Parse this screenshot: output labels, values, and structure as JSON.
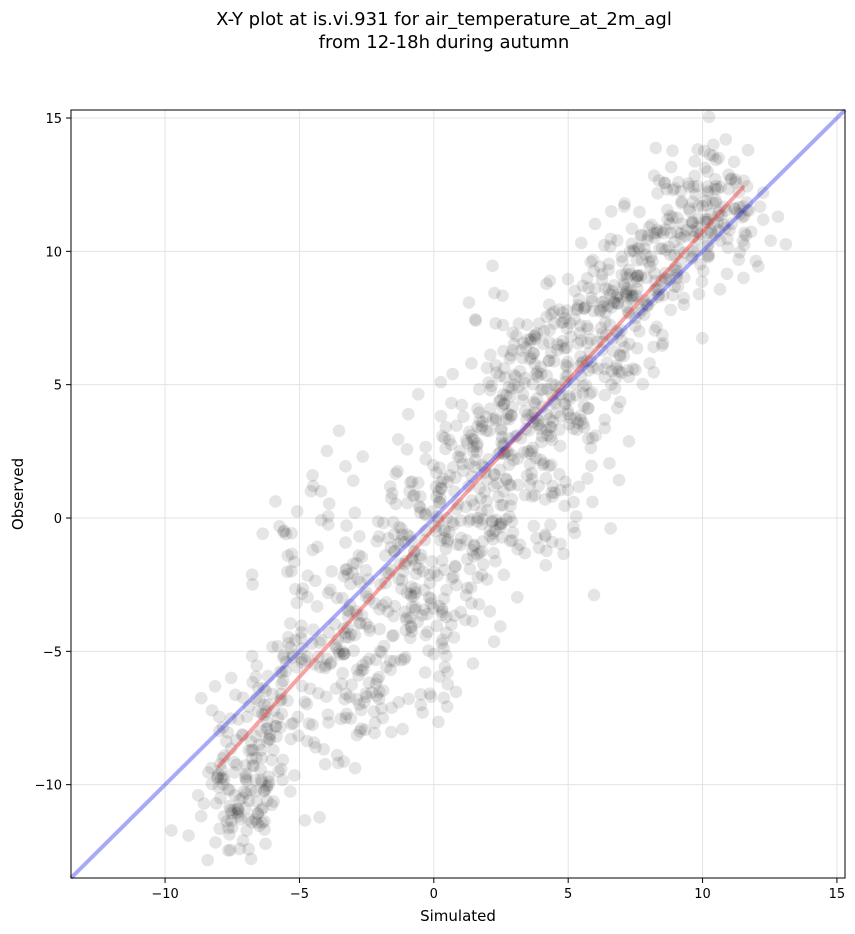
{
  "chart_data": {
    "type": "scatter",
    "title_lines": [
      "X-Y plot at is.vi.931 for air_temperature_at_2m_agl",
      "from 12-18h during autumn"
    ],
    "xlabel": "Simulated",
    "ylabel": "Observed",
    "xlim": [
      -13.5,
      15.3
    ],
    "ylim": [
      -13.5,
      15.3
    ],
    "x_ticks": [
      -10,
      -5,
      0,
      5,
      10,
      15
    ],
    "y_ticks": [
      -10,
      -5,
      0,
      5,
      10,
      15
    ],
    "x_tick_labels": [
      "−10",
      "−5",
      "0",
      "5",
      "10",
      "15"
    ],
    "y_tick_labels": [
      "−10",
      "−5",
      "0",
      "5",
      "10",
      "15"
    ],
    "grid": true,
    "point_color": "#000000",
    "point_opacity": 0.1,
    "point_count": 1200,
    "fit_line": {
      "color": "#ee3333",
      "from": [
        -8.0,
        -9.3
      ],
      "to": [
        11.5,
        12.4
      ]
    },
    "identity_line": {
      "color": "#3333ee",
      "from": [
        -13.5,
        -13.5
      ],
      "to": [
        15.3,
        15.3
      ]
    },
    "sample_points": [
      [
        -8.0,
        -10.1
      ],
      [
        -7.8,
        -9.8
      ],
      [
        -7.6,
        -10.8
      ],
      [
        -7.5,
        -11.6
      ],
      [
        -7.4,
        -10.4
      ],
      [
        -7.3,
        -10.9
      ],
      [
        -7.1,
        -12.1
      ],
      [
        -7.0,
        -9.7
      ],
      [
        -6.9,
        -11.3
      ],
      [
        -6.8,
        -10.2
      ],
      [
        -6.7,
        -9.3
      ],
      [
        -6.6,
        -9.0
      ],
      [
        -6.5,
        -8.5
      ],
      [
        -6.4,
        -9.9
      ],
      [
        -6.2,
        -10.6
      ],
      [
        -6.1,
        -8.3
      ],
      [
        -6.3,
        -7.0
      ],
      [
        -6.0,
        -6.6
      ],
      [
        -5.8,
        -7.5
      ],
      [
        -5.6,
        -6.1
      ],
      [
        -5.5,
        -5.4
      ],
      [
        -5.4,
        -4.7
      ],
      [
        -5.3,
        -2.0
      ],
      [
        -5.5,
        -0.6
      ],
      [
        -5.1,
        -5.6
      ],
      [
        -4.9,
        -4.9
      ],
      [
        -4.6,
        -6.4
      ],
      [
        -4.4,
        -8.6
      ],
      [
        -4.3,
        -5.2
      ],
      [
        -4.2,
        1.0
      ],
      [
        -4.0,
        -6.7
      ],
      [
        -3.9,
        -4.3
      ],
      [
        -3.8,
        -2.0
      ],
      [
        -3.6,
        -3.0
      ],
      [
        -3.4,
        -5.0
      ],
      [
        -3.2,
        -2.1
      ],
      [
        -3.0,
        1.4
      ],
      [
        -2.9,
        -3.5
      ],
      [
        -2.8,
        -5.9
      ],
      [
        -2.7,
        -7.2
      ],
      [
        -2.7,
        -7.9
      ],
      [
        -2.5,
        -6.7
      ],
      [
        -2.4,
        -4.1
      ],
      [
        -2.2,
        -3.2
      ],
      [
        -2.0,
        -5.0
      ],
      [
        -1.9,
        -7.5
      ],
      [
        -1.7,
        -3.5
      ],
      [
        -1.6,
        -1.1
      ],
      [
        -1.5,
        -4.4
      ],
      [
        -1.3,
        -2.3
      ],
      [
        -1.2,
        -0.4
      ],
      [
        -1.1,
        -5.3
      ],
      [
        -1.0,
        -2.8
      ],
      [
        -0.9,
        1.0
      ],
      [
        -0.8,
        -1.5
      ],
      [
        -0.6,
        -3.9
      ],
      [
        -0.5,
        0.2
      ],
      [
        -0.4,
        -2.0
      ],
      [
        -0.3,
        2.2
      ],
      [
        -0.1,
        -6.7
      ],
      [
        0.0,
        -5.1
      ],
      [
        0.1,
        0.8
      ],
      [
        0.2,
        -3.3
      ],
      [
        0.3,
        -4.7
      ],
      [
        0.4,
        3.0
      ],
      [
        0.5,
        -0.9
      ],
      [
        0.6,
        1.6
      ],
      [
        0.7,
        5.4
      ],
      [
        0.8,
        -1.8
      ],
      [
        0.9,
        2.3
      ],
      [
        1.0,
        -0.1
      ],
      [
        1.1,
        3.8
      ],
      [
        1.2,
        -2.9
      ],
      [
        1.3,
        1.2
      ],
      [
        1.4,
        -3.2
      ],
      [
        1.5,
        0.5
      ],
      [
        1.6,
        2.7
      ],
      [
        1.7,
        -1.3
      ],
      [
        1.8,
        3.6
      ],
      [
        1.9,
        1.9
      ],
      [
        2.0,
        0.3
      ],
      [
        2.1,
        4.1
      ],
      [
        2.2,
        -0.8
      ],
      [
        2.3,
        7.3
      ],
      [
        2.4,
        2.4
      ],
      [
        2.5,
        3.3
      ],
      [
        2.6,
        1.0
      ],
      [
        2.7,
        4.6
      ],
      [
        2.8,
        2.0
      ],
      [
        2.9,
        0.7
      ],
      [
        3.0,
        5.0
      ],
      [
        3.1,
        3.1
      ],
      [
        3.2,
        -1.0
      ],
      [
        3.3,
        6.0
      ],
      [
        3.4,
        4.0
      ],
      [
        3.5,
        2.5
      ],
      [
        3.6,
        6.6
      ],
      [
        3.7,
        3.6
      ],
      [
        3.8,
        5.4
      ],
      [
        3.9,
        1.2
      ],
      [
        4.0,
        4.8
      ],
      [
        4.1,
        7.0
      ],
      [
        4.2,
        3.3
      ],
      [
        4.3,
        5.9
      ],
      [
        4.4,
        -0.9
      ],
      [
        4.5,
        4.3
      ],
      [
        4.6,
        6.3
      ],
      [
        4.7,
        2.7
      ],
      [
        4.8,
        7.7
      ],
      [
        4.9,
        5.1
      ],
      [
        5.0,
        3.9
      ],
      [
        5.1,
        6.8
      ],
      [
        5.2,
        0.6
      ],
      [
        5.3,
        4.6
      ],
      [
        5.4,
        8.2
      ],
      [
        5.5,
        5.8
      ],
      [
        5.6,
        3.4
      ],
      [
        5.7,
        7.2
      ],
      [
        5.8,
        6.2
      ],
      [
        5.9,
        3.0
      ],
      [
        6.0,
        8.6
      ],
      [
        6.1,
        5.6
      ],
      [
        6.2,
        7.8
      ],
      [
        6.3,
        6.6
      ],
      [
        6.5,
        9.3
      ],
      [
        6.6,
        5.0
      ],
      [
        6.7,
        8.1
      ],
      [
        6.8,
        7.0
      ],
      [
        7.0,
        9.8
      ],
      [
        7.1,
        6.4
      ],
      [
        7.2,
        8.6
      ],
      [
        7.3,
        10.0
      ],
      [
        7.5,
        7.5
      ],
      [
        7.6,
        9.1
      ],
      [
        7.7,
        10.6
      ],
      [
        7.9,
        8.0
      ],
      [
        8.0,
        9.6
      ],
      [
        8.1,
        11.0
      ],
      [
        8.3,
        8.6
      ],
      [
        8.4,
        10.1
      ],
      [
        8.6,
        9.0
      ],
      [
        8.7,
        11.2
      ],
      [
        8.9,
        12.3
      ],
      [
        9.0,
        9.4
      ],
      [
        9.2,
        10.5
      ],
      [
        9.3,
        8.0
      ],
      [
        9.5,
        11.6
      ],
      [
        9.6,
        9.8
      ],
      [
        9.8,
        10.9
      ],
      [
        10.0,
        11.7
      ],
      [
        10.2,
        10.2
      ],
      [
        10.4,
        14.0
      ],
      [
        10.5,
        11.9
      ],
      [
        10.6,
        13.5
      ],
      [
        10.8,
        11.0
      ],
      [
        11.0,
        10.8
      ],
      [
        11.2,
        11.6
      ],
      [
        11.4,
        11.4
      ],
      [
        11.5,
        10.4
      ]
    ]
  }
}
